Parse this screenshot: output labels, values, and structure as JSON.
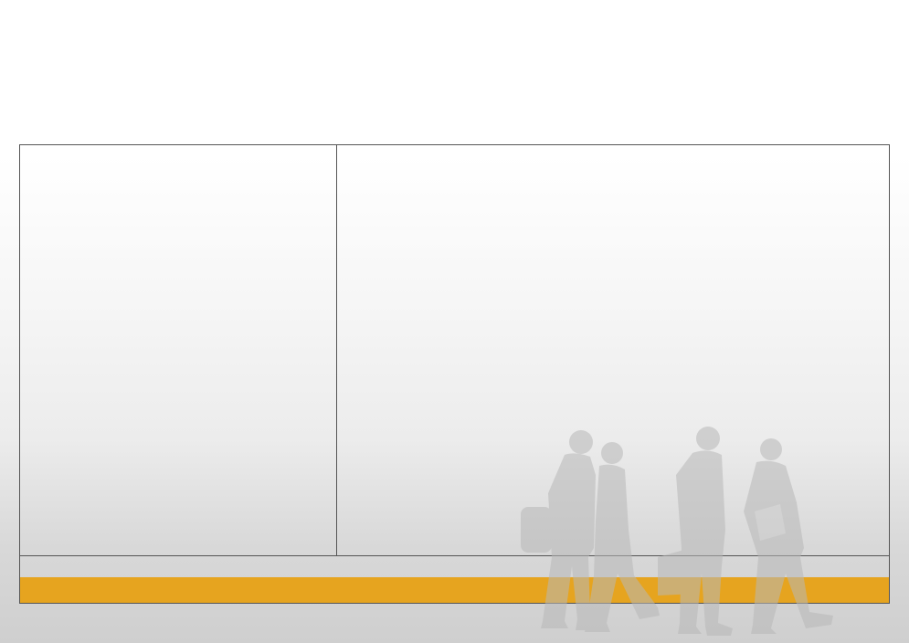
{
  "colors": {
    "accent_bar": "#e6a41f",
    "frame_border": "#555555",
    "silhouette": "#b8b8b8"
  },
  "decor": {
    "image_icon": "walking-people-silhouette-icon"
  }
}
